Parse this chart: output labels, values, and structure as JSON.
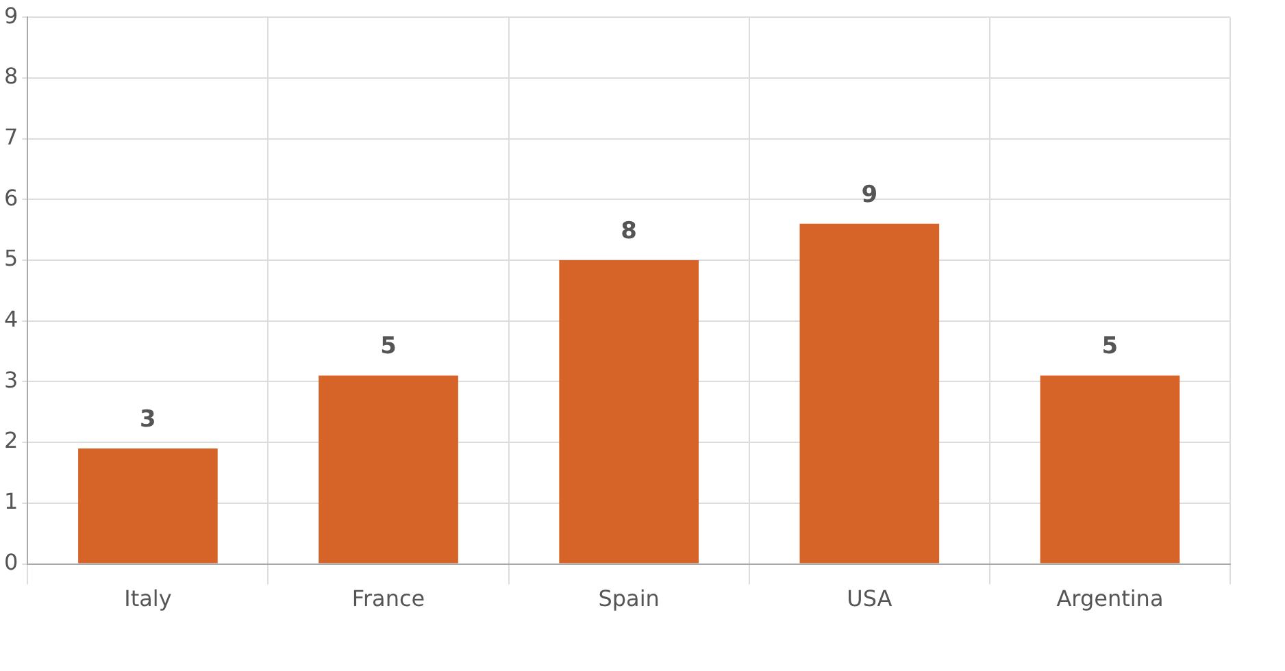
{
  "chart_data": {
    "type": "bar",
    "categories": [
      "Italy",
      "France",
      "Spain",
      "USA",
      "Argentina"
    ],
    "values": [
      1.9,
      3.1,
      5,
      5.6,
      3.1
    ],
    "annotations": [
      {
        "text": "3",
        "x": "Italy",
        "y": 1.9
      },
      {
        "text": "5",
        "x": "France",
        "y": 3.1
      },
      {
        "text": "8",
        "x": "Spain",
        "y": 5
      },
      {
        "text": "9",
        "x": "USA",
        "y": 5.6
      },
      {
        "text": "5",
        "x": "Argentina",
        "y": 3.1
      }
    ],
    "color": "#d66428",
    "ylim": [
      0,
      9
    ],
    "yticks": [
      0,
      1,
      2,
      3,
      4,
      5,
      6,
      7,
      8,
      9
    ],
    "grid": true,
    "legend": false
  }
}
